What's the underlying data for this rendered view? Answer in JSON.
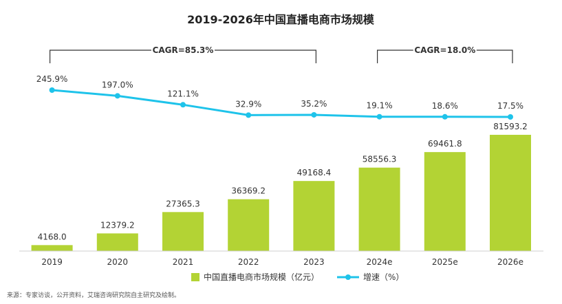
{
  "chart_data": {
    "type": "bar",
    "title": "2019-2026年中国直播电商市场规模",
    "categories": [
      "2019",
      "2020",
      "2021",
      "2022",
      "2023",
      "2024e",
      "2025e",
      "2026e"
    ],
    "series": [
      {
        "name": "中国直播电商市场规模（亿元）",
        "type": "bar",
        "color": "#b3d334",
        "values": [
          4168.0,
          12379.2,
          27365.3,
          36369.2,
          49168.4,
          58556.3,
          69461.8,
          81593.2
        ],
        "labels": [
          "4168.0",
          "12379.2",
          "27365.3",
          "36369.2",
          "49168.4",
          "58556.3",
          "69461.8",
          "81593.2"
        ]
      },
      {
        "name": "增速（%）",
        "type": "line",
        "color": "#1ec3ea",
        "values": [
          245.9,
          197.0,
          121.1,
          32.9,
          35.2,
          19.1,
          18.6,
          17.5
        ],
        "labels": [
          "245.9%",
          "197.0%",
          "121.1%",
          "32.9%",
          "35.2%",
          "19.1%",
          "18.6%",
          "17.5%"
        ]
      }
    ],
    "ylim": [
      0,
      81593.2
    ],
    "legend_position": "bottom",
    "grid": false,
    "annotations": [
      {
        "text": "CAGR=85.3%",
        "from_index": 0,
        "to_index": 4
      },
      {
        "text": "CAGR=18.0%",
        "from_index": 5,
        "to_index": 7
      }
    ]
  },
  "source": "来源：专家访谈，公开资料，艾瑞咨询研究院自主研究及绘制。"
}
